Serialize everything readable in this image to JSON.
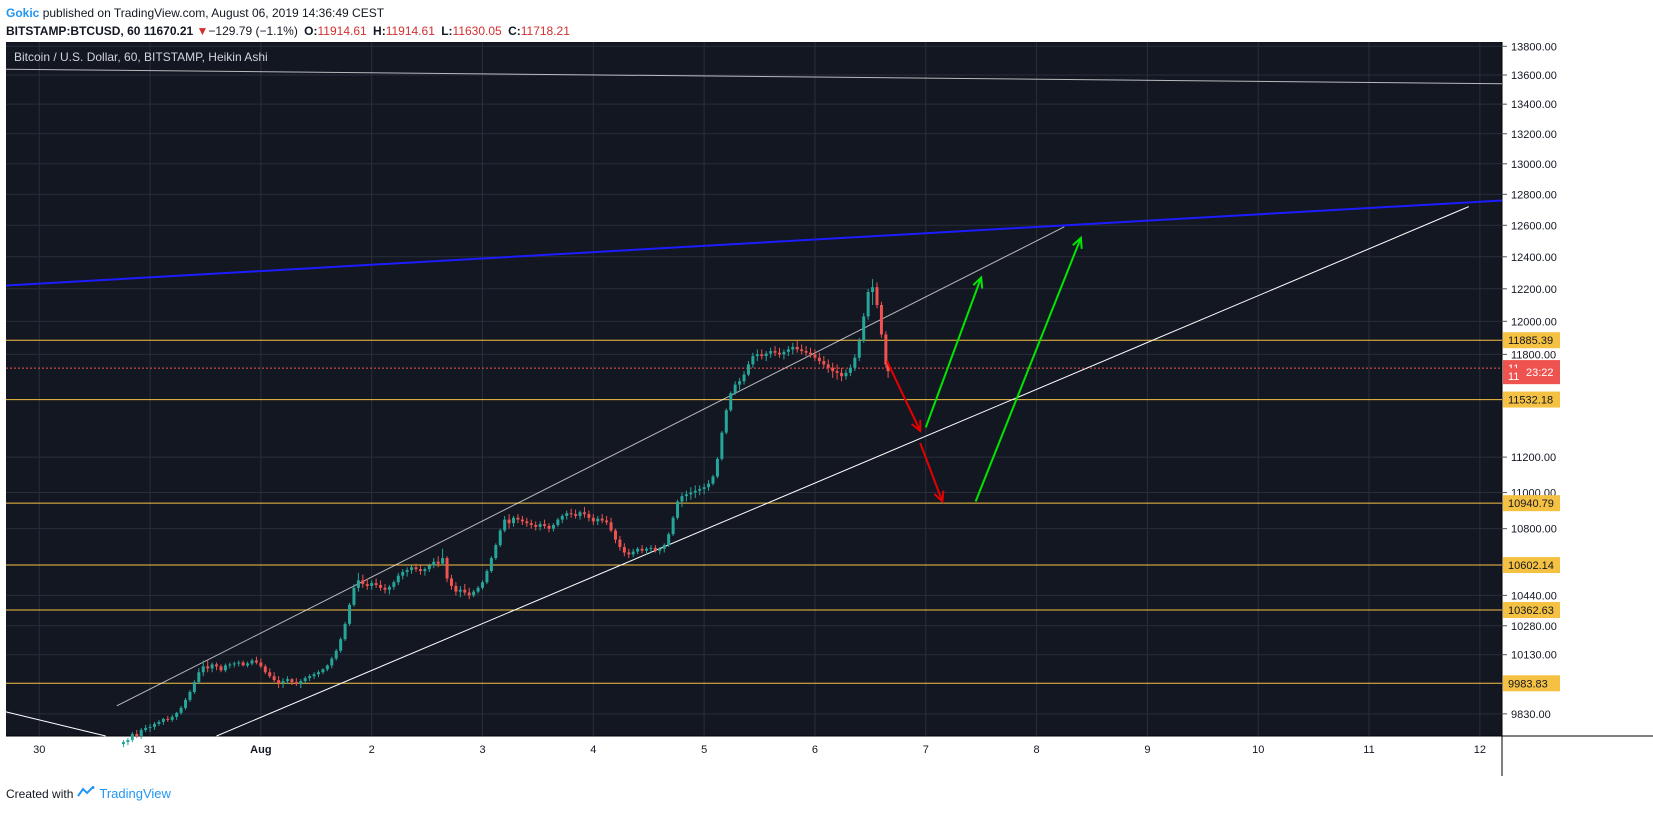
{
  "header": {
    "author": "Gokic",
    "published_text": "published on TradingView.com, August 06, 2019 14:36:49 CEST",
    "symbol": "BITSTAMP:BTCUSD, 60",
    "last_price": "11670.21",
    "change": "−129.79 (−1.1%)",
    "open_label": "O:",
    "open": "11914.61",
    "high_label": "H:",
    "high": "11914.61",
    "low_label": "L:",
    "low": "11630.05",
    "close_label": "C:",
    "close": "11718.21"
  },
  "footer": {
    "created_with": "Created with",
    "brand": "TradingView"
  },
  "colors": {
    "background": "#131722",
    "grid": "#2a2e39",
    "up": "#26a69a",
    "down": "#ef5350",
    "support_line": "#f5c142",
    "blue_line": "#1c1cff",
    "trend_line": "#ffffff",
    "arrow_green": "#00e600",
    "arrow_red": "#e60000"
  },
  "chart_data": {
    "type": "candlestick",
    "title": "Bitcoin / U.S. Dollar, 60, BITSTAMP, Heikin Ashi",
    "x_ticks": [
      "30",
      "31",
      "Aug",
      "2",
      "3",
      "4",
      "5",
      "6",
      "7",
      "8",
      "9",
      "10",
      "11",
      "12"
    ],
    "y_ticks": [
      "13800.00",
      "13600.00",
      "13400.00",
      "13200.00",
      "13000.00",
      "12800.00",
      "12600.00",
      "12400.00",
      "12200.00",
      "12000.00",
      "11800.00",
      "11200.00",
      "11000.00",
      "10800.00",
      "10440.00",
      "10280.00",
      "10130.00",
      "9830.00"
    ],
    "y_scale": "log",
    "ylim": [
      9720,
      13830
    ],
    "xlim_days": [
      -0.3,
      13.2
    ],
    "grid": true,
    "horizontal_levels": [
      {
        "value": 11885.39,
        "label": "11885.39"
      },
      {
        "value": 11532.18,
        "label": "11532.18"
      },
      {
        "value": 10940.79,
        "label": "10940.79"
      },
      {
        "value": 10602.14,
        "label": "10602.14"
      },
      {
        "value": 10362.63,
        "label": "10362.63"
      },
      {
        "value": 9983.83,
        "label": "9983.83"
      }
    ],
    "price_badges": [
      {
        "value": 11718.21,
        "label": "11718.21"
      },
      {
        "value": 11670.21,
        "label": "11670.21"
      }
    ],
    "countdown": "23:22",
    "current_price_line": 11718.21,
    "lines": [
      {
        "name": "blue_resistance",
        "points": [
          [
            -0.3,
            12220
          ],
          [
            13.2,
            12760
          ]
        ]
      },
      {
        "name": "channel_top",
        "points": [
          [
            0.7,
            9870
          ],
          [
            9.25,
            12590
          ]
        ]
      },
      {
        "name": "channel_bottom",
        "points": [
          [
            1.6,
            9720
          ],
          [
            12.9,
            12720
          ]
        ]
      },
      {
        "name": "top_grey",
        "points": [
          [
            -0.3,
            13640
          ],
          [
            13.2,
            13540
          ]
        ]
      },
      {
        "name": "descending_left",
        "points": [
          [
            -0.3,
            9840
          ],
          [
            0.6,
            9720
          ]
        ]
      }
    ],
    "arrows": [
      {
        "color": "red",
        "from": [
          7.65,
          11760
        ],
        "to": [
          7.95,
          11350
        ]
      },
      {
        "color": "red",
        "from": [
          7.95,
          11280
        ],
        "to": [
          8.15,
          10950
        ]
      },
      {
        "color": "green",
        "from": [
          8.0,
          11370
        ],
        "to": [
          8.5,
          12270
        ]
      },
      {
        "color": "green",
        "from": [
          8.45,
          10950
        ],
        "to": [
          9.4,
          12520
        ]
      }
    ],
    "candles": [
      [
        0.76,
        9680,
        9700,
        9665,
        9690
      ],
      [
        0.8,
        9690,
        9710,
        9675,
        9700
      ],
      [
        0.84,
        9700,
        9740,
        9690,
        9730
      ],
      [
        0.88,
        9730,
        9750,
        9710,
        9720
      ],
      [
        0.92,
        9720,
        9760,
        9705,
        9750
      ],
      [
        0.96,
        9750,
        9775,
        9740,
        9760
      ],
      [
        1.0,
        9760,
        9780,
        9740,
        9765
      ],
      [
        1.04,
        9765,
        9790,
        9750,
        9780
      ],
      [
        1.08,
        9780,
        9800,
        9770,
        9790
      ],
      [
        1.12,
        9790,
        9810,
        9775,
        9805
      ],
      [
        1.16,
        9805,
        9820,
        9790,
        9800
      ],
      [
        1.2,
        9800,
        9825,
        9790,
        9815
      ],
      [
        1.24,
        9815,
        9840,
        9800,
        9835
      ],
      [
        1.28,
        9835,
        9870,
        9825,
        9860
      ],
      [
        1.32,
        9860,
        9910,
        9850,
        9900
      ],
      [
        1.36,
        9900,
        9950,
        9890,
        9940
      ],
      [
        1.4,
        9940,
        10000,
        9930,
        9990
      ],
      [
        1.44,
        9990,
        10060,
        9980,
        10040
      ],
      [
        1.48,
        10040,
        10100,
        10020,
        10070
      ],
      [
        1.52,
        10070,
        10100,
        10040,
        10060
      ],
      [
        1.56,
        10060,
        10090,
        10040,
        10080
      ],
      [
        1.6,
        10080,
        10090,
        10050,
        10070
      ],
      [
        1.64,
        10070,
        10080,
        10040,
        10050
      ],
      [
        1.68,
        10050,
        10085,
        10040,
        10075
      ],
      [
        1.72,
        10075,
        10090,
        10060,
        10080
      ],
      [
        1.76,
        10080,
        10095,
        10065,
        10085
      ],
      [
        1.8,
        10085,
        10100,
        10070,
        10090
      ],
      [
        1.84,
        10090,
        10100,
        10070,
        10075
      ],
      [
        1.88,
        10075,
        10095,
        10065,
        10085
      ],
      [
        1.92,
        10085,
        10110,
        10075,
        10100
      ],
      [
        1.96,
        10100,
        10120,
        10080,
        10090
      ],
      [
        2.0,
        10090,
        10110,
        10060,
        10070
      ],
      [
        2.04,
        10070,
        10080,
        10030,
        10040
      ],
      [
        2.08,
        10040,
        10060,
        10010,
        10020
      ],
      [
        2.12,
        10020,
        10040,
        9990,
        10000
      ],
      [
        2.16,
        10000,
        10020,
        9960,
        9985
      ],
      [
        2.2,
        9985,
        10010,
        9960,
        9995
      ],
      [
        2.24,
        9995,
        10020,
        9980,
        10005
      ],
      [
        2.28,
        10005,
        10010,
        9975,
        9990
      ],
      [
        2.32,
        9990,
        10010,
        9970,
        9980
      ],
      [
        2.36,
        9980,
        10005,
        9960,
        9995
      ],
      [
        2.4,
        9995,
        10020,
        9985,
        10010
      ],
      [
        2.44,
        10010,
        10030,
        9995,
        10020
      ],
      [
        2.48,
        10020,
        10040,
        10005,
        10030
      ],
      [
        2.52,
        10030,
        10050,
        10015,
        10040
      ],
      [
        2.56,
        10040,
        10060,
        10030,
        10055
      ],
      [
        2.6,
        10055,
        10080,
        10045,
        10075
      ],
      [
        2.64,
        10075,
        10120,
        10060,
        10110
      ],
      [
        2.68,
        10110,
        10160,
        10100,
        10150
      ],
      [
        2.72,
        10150,
        10220,
        10140,
        10210
      ],
      [
        2.76,
        10210,
        10300,
        10200,
        10290
      ],
      [
        2.8,
        10290,
        10400,
        10280,
        10390
      ],
      [
        2.84,
        10390,
        10500,
        10380,
        10480
      ],
      [
        2.88,
        10480,
        10560,
        10460,
        10520
      ],
      [
        2.92,
        10520,
        10550,
        10480,
        10500
      ],
      [
        2.96,
        10500,
        10530,
        10470,
        10490
      ],
      [
        3.0,
        10490,
        10520,
        10470,
        10505
      ],
      [
        3.04,
        10505,
        10530,
        10480,
        10495
      ],
      [
        3.08,
        10495,
        10520,
        10465,
        10480
      ],
      [
        3.12,
        10480,
        10500,
        10450,
        10470
      ],
      [
        3.16,
        10470,
        10495,
        10445,
        10485
      ],
      [
        3.2,
        10485,
        10520,
        10470,
        10510
      ],
      [
        3.24,
        10510,
        10560,
        10495,
        10545
      ],
      [
        3.28,
        10545,
        10580,
        10525,
        10565
      ],
      [
        3.32,
        10565,
        10590,
        10540,
        10575
      ],
      [
        3.36,
        10575,
        10600,
        10555,
        10590
      ],
      [
        3.4,
        10590,
        10610,
        10565,
        10580
      ],
      [
        3.44,
        10580,
        10600,
        10550,
        10570
      ],
      [
        3.48,
        10570,
        10590,
        10545,
        10580
      ],
      [
        3.52,
        10580,
        10610,
        10565,
        10600
      ],
      [
        3.56,
        10600,
        10640,
        10585,
        10620
      ],
      [
        3.6,
        10620,
        10650,
        10590,
        10610
      ],
      [
        3.64,
        10610,
        10690,
        10600,
        10640
      ],
      [
        3.68,
        10640,
        10650,
        10510,
        10530
      ],
      [
        3.72,
        10530,
        10550,
        10470,
        10490
      ],
      [
        3.76,
        10490,
        10510,
        10440,
        10460
      ],
      [
        3.8,
        10460,
        10490,
        10430,
        10470
      ],
      [
        3.84,
        10470,
        10500,
        10440,
        10455
      ],
      [
        3.88,
        10455,
        10480,
        10420,
        10440
      ],
      [
        3.92,
        10440,
        10470,
        10430,
        10460
      ],
      [
        3.96,
        10460,
        10490,
        10450,
        10480
      ],
      [
        4.0,
        10480,
        10520,
        10470,
        10510
      ],
      [
        4.04,
        10510,
        10580,
        10500,
        10570
      ],
      [
        4.08,
        10570,
        10650,
        10560,
        10640
      ],
      [
        4.12,
        10640,
        10720,
        10630,
        10710
      ],
      [
        4.16,
        10710,
        10800,
        10700,
        10790
      ],
      [
        4.2,
        10790,
        10870,
        10780,
        10850
      ],
      [
        4.24,
        10850,
        10880,
        10800,
        10830
      ],
      [
        4.28,
        10830,
        10870,
        10810,
        10860
      ],
      [
        4.32,
        10860,
        10880,
        10830,
        10850
      ],
      [
        4.36,
        10850,
        10870,
        10820,
        10840
      ],
      [
        4.4,
        10840,
        10860,
        10810,
        10830
      ],
      [
        4.44,
        10830,
        10850,
        10800,
        10820
      ],
      [
        4.48,
        10820,
        10840,
        10790,
        10810
      ],
      [
        4.52,
        10810,
        10840,
        10790,
        10825
      ],
      [
        4.56,
        10825,
        10850,
        10800,
        10815
      ],
      [
        4.6,
        10815,
        10830,
        10780,
        10800
      ],
      [
        4.64,
        10800,
        10830,
        10785,
        10820
      ],
      [
        4.68,
        10820,
        10860,
        10810,
        10850
      ],
      [
        4.72,
        10850,
        10880,
        10830,
        10870
      ],
      [
        4.76,
        10870,
        10900,
        10850,
        10885
      ],
      [
        4.8,
        10885,
        10910,
        10860,
        10880
      ],
      [
        4.84,
        10880,
        10905,
        10855,
        10870
      ],
      [
        4.88,
        10870,
        10900,
        10850,
        10890
      ],
      [
        4.92,
        10890,
        10920,
        10860,
        10880
      ],
      [
        4.96,
        10880,
        10900,
        10840,
        10860
      ],
      [
        5.0,
        10860,
        10880,
        10820,
        10840
      ],
      [
        5.04,
        10840,
        10870,
        10820,
        10855
      ],
      [
        5.08,
        10855,
        10880,
        10830,
        10845
      ],
      [
        5.12,
        10845,
        10870,
        10820,
        10835
      ],
      [
        5.16,
        10835,
        10860,
        10780,
        10790
      ],
      [
        5.2,
        10790,
        10800,
        10720,
        10740
      ],
      [
        5.24,
        10740,
        10760,
        10680,
        10700
      ],
      [
        5.28,
        10700,
        10720,
        10650,
        10670
      ],
      [
        5.32,
        10670,
        10690,
        10640,
        10660
      ],
      [
        5.36,
        10660,
        10690,
        10645,
        10675
      ],
      [
        5.4,
        10675,
        10700,
        10660,
        10690
      ],
      [
        5.44,
        10690,
        10710,
        10665,
        10680
      ],
      [
        5.48,
        10680,
        10700,
        10660,
        10690
      ],
      [
        5.52,
        10690,
        10710,
        10670,
        10695
      ],
      [
        5.56,
        10695,
        10710,
        10670,
        10680
      ],
      [
        5.6,
        10680,
        10700,
        10660,
        10690
      ],
      [
        5.64,
        10690,
        10720,
        10670,
        10710
      ],
      [
        5.68,
        10710,
        10780,
        10700,
        10770
      ],
      [
        5.72,
        10770,
        10870,
        10760,
        10860
      ],
      [
        5.76,
        10860,
        10960,
        10850,
        10950
      ],
      [
        5.8,
        10950,
        11000,
        10920,
        10980
      ],
      [
        5.84,
        10980,
        11010,
        10950,
        10990
      ],
      [
        5.88,
        10990,
        11030,
        10960,
        11000
      ],
      [
        5.92,
        11000,
        11040,
        10970,
        11010
      ],
      [
        5.96,
        11010,
        11040,
        10985,
        11020
      ],
      [
        6.0,
        11020,
        11050,
        10990,
        11030
      ],
      [
        6.04,
        11030,
        11070,
        11010,
        11050
      ],
      [
        6.08,
        11050,
        11100,
        11040,
        11090
      ],
      [
        6.12,
        11090,
        11200,
        11080,
        11190
      ],
      [
        6.16,
        11190,
        11350,
        11180,
        11340
      ],
      [
        6.2,
        11340,
        11480,
        11330,
        11470
      ],
      [
        6.24,
        11470,
        11580,
        11460,
        11570
      ],
      [
        6.28,
        11570,
        11640,
        11560,
        11620
      ],
      [
        6.32,
        11620,
        11660,
        11590,
        11640
      ],
      [
        6.36,
        11640,
        11700,
        11620,
        11680
      ],
      [
        6.4,
        11680,
        11760,
        11670,
        11740
      ],
      [
        6.44,
        11740,
        11810,
        11720,
        11790
      ],
      [
        6.48,
        11790,
        11830,
        11760,
        11800
      ],
      [
        6.52,
        11800,
        11830,
        11770,
        11790
      ],
      [
        6.56,
        11790,
        11820,
        11760,
        11805
      ],
      [
        6.6,
        11805,
        11840,
        11780,
        11820
      ],
      [
        6.64,
        11820,
        11850,
        11790,
        11810
      ],
      [
        6.68,
        11810,
        11840,
        11780,
        11800
      ],
      [
        6.72,
        11800,
        11830,
        11770,
        11815
      ],
      [
        6.76,
        11815,
        11850,
        11790,
        11830
      ],
      [
        6.8,
        11830,
        11870,
        11800,
        11845
      ],
      [
        6.84,
        11845,
        11880,
        11810,
        11830
      ],
      [
        6.88,
        11830,
        11860,
        11800,
        11820
      ],
      [
        6.92,
        11820,
        11850,
        11790,
        11810
      ],
      [
        6.96,
        11810,
        11840,
        11780,
        11800
      ],
      [
        7.0,
        11800,
        11830,
        11760,
        11780
      ],
      [
        7.04,
        11780,
        11810,
        11740,
        11760
      ],
      [
        7.08,
        11760,
        11790,
        11720,
        11740
      ],
      [
        7.12,
        11740,
        11770,
        11690,
        11720
      ],
      [
        7.16,
        11720,
        11750,
        11660,
        11700
      ],
      [
        7.2,
        11700,
        11740,
        11650,
        11690
      ],
      [
        7.24,
        11690,
        11720,
        11640,
        11670
      ],
      [
        7.28,
        11670,
        11710,
        11650,
        11690
      ],
      [
        7.32,
        11690,
        11740,
        11670,
        11720
      ],
      [
        7.36,
        11720,
        11800,
        11700,
        11780
      ],
      [
        7.4,
        11780,
        11900,
        11760,
        11880
      ],
      [
        7.44,
        11880,
        12050,
        11870,
        12030
      ],
      [
        7.48,
        12030,
        12200,
        12010,
        12180
      ],
      [
        7.52,
        12180,
        12260,
        12100,
        12210
      ],
      [
        7.56,
        12210,
        12240,
        12080,
        12100
      ],
      [
        7.6,
        12100,
        12120,
        11900,
        11920
      ],
      [
        7.64,
        11920,
        11940,
        11720,
        11740
      ],
      [
        7.66,
        11740,
        11760,
        11660,
        11700
      ]
    ]
  }
}
